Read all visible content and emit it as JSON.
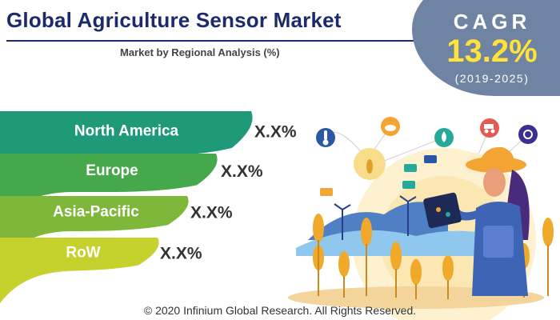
{
  "header": {
    "title": "Global Agriculture Sensor Market",
    "subtitle": "Market by Regional Analysis (%)"
  },
  "cagr": {
    "label": "CAGR",
    "value": "13.2%",
    "period": "(2019-2025)"
  },
  "chart_data": {
    "type": "bar",
    "categories": [
      "North America",
      "Europe",
      "Asia-Pacific",
      "RoW"
    ],
    "value_labels": [
      "X.X%",
      "X.X%",
      "X.X%",
      "X.X%"
    ],
    "colors": [
      "#1f9a78",
      "#45a84a",
      "#7fb73a",
      "#c5d12c"
    ]
  },
  "illustration": {
    "icons": [
      "thermometer-icon",
      "cloud-icon",
      "water-drop-icon",
      "tractor-icon",
      "satellite-icon",
      "wheat-icon",
      "drone-icon",
      "tablet-icon",
      "wind-turbine-icon"
    ]
  },
  "footer": {
    "copyright": "© 2020 Infinium Global Research. All Rights Reserved."
  }
}
